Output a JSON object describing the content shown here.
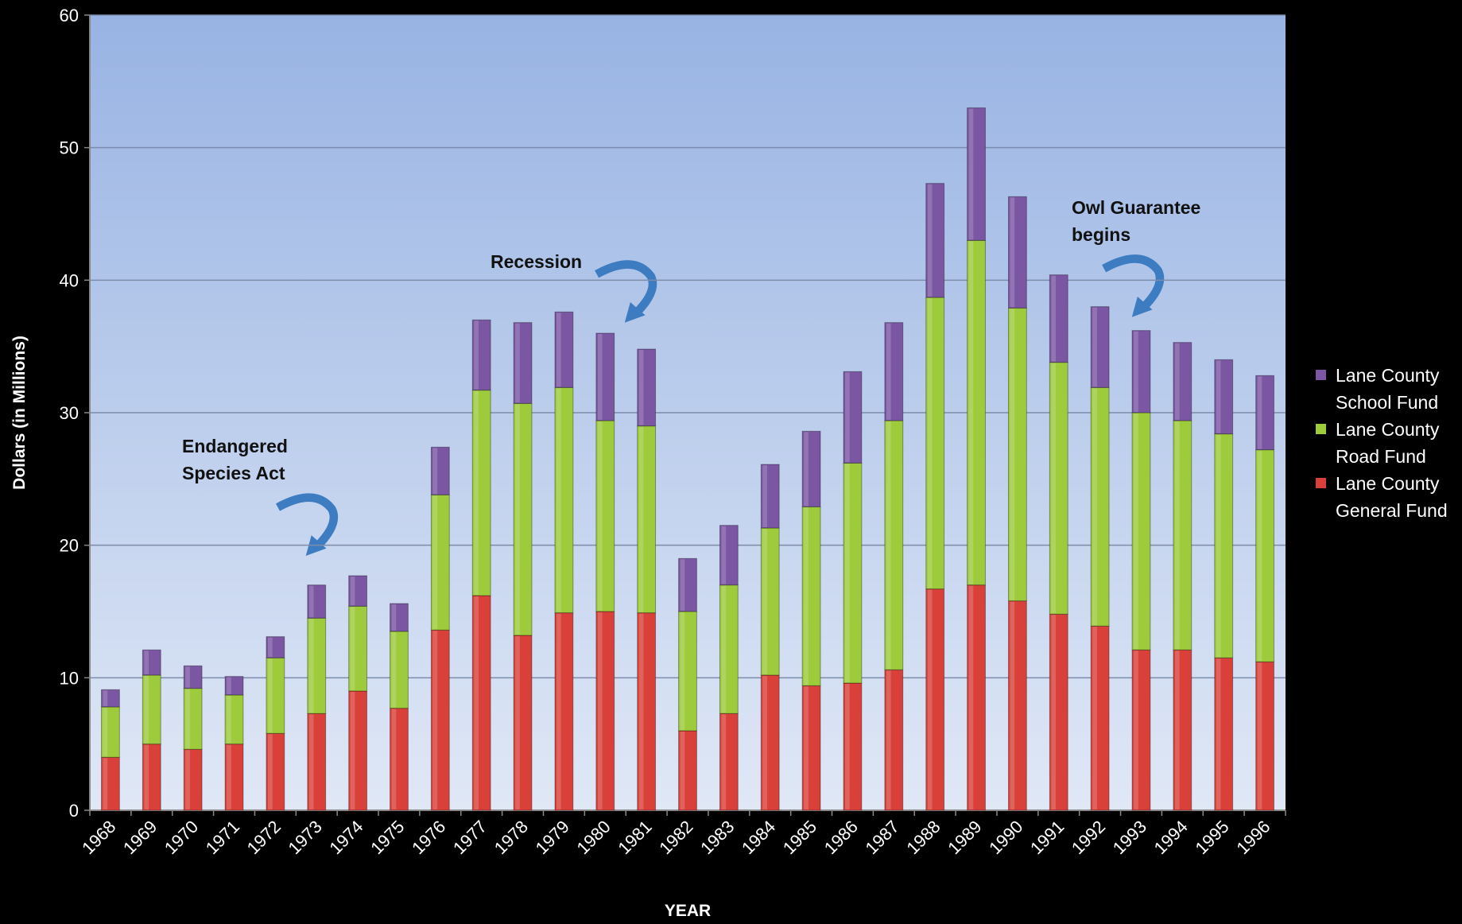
{
  "chart_data": {
    "type": "stacked-bar",
    "y_label": "Dollars (in Millions)",
    "x_label": "YEAR",
    "categories": [
      "1968",
      "1969",
      "1970",
      "1971",
      "1972",
      "1973",
      "1974",
      "1975",
      "1976",
      "1977",
      "1978",
      "1979",
      "1980",
      "1981",
      "1982",
      "1983",
      "1984",
      "1985",
      "1986",
      "1987",
      "1988",
      "1989",
      "1990",
      "1991",
      "1992",
      "1993",
      "1994",
      "1995",
      "1996"
    ],
    "series": [
      {
        "name": "Lane County General Fund",
        "color": "#d9403a",
        "values": [
          4.0,
          5.0,
          4.6,
          5.0,
          5.8,
          7.3,
          9.0,
          7.7,
          13.6,
          16.2,
          13.2,
          14.9,
          15.0,
          14.9,
          6.0,
          7.3,
          10.2,
          9.4,
          9.6,
          10.6,
          16.7,
          17.0,
          15.8,
          14.8,
          13.9,
          12.1,
          12.1,
          11.5,
          11.2
        ]
      },
      {
        "name": "Lane County Road Fund",
        "color": "#9dcb3c",
        "values": [
          3.8,
          5.2,
          4.6,
          3.7,
          5.7,
          7.2,
          6.4,
          5.8,
          10.2,
          15.5,
          17.5,
          17.0,
          14.4,
          14.1,
          9.0,
          9.7,
          11.1,
          13.5,
          16.6,
          18.8,
          22.0,
          26.0,
          22.1,
          19.0,
          18.0,
          17.9,
          17.3,
          16.9,
          16.0
        ]
      },
      {
        "name": "Lane County School Fund",
        "color": "#7a56a3",
        "values": [
          1.3,
          1.9,
          1.7,
          1.4,
          1.6,
          2.5,
          2.3,
          2.1,
          3.6,
          5.3,
          6.1,
          5.7,
          6.6,
          5.8,
          4.0,
          4.5,
          4.8,
          5.7,
          6.9,
          7.4,
          8.6,
          10.0,
          8.4,
          6.6,
          6.1,
          6.2,
          5.9,
          5.6,
          5.6
        ]
      }
    ],
    "ylim": [
      0,
      60
    ],
    "yticks": [
      0,
      10,
      20,
      30,
      40,
      50,
      60
    ],
    "grid": true,
    "annotations": [
      "Endangered Species Act",
      "Recession",
      "Owl Guarantee begins"
    ]
  }
}
